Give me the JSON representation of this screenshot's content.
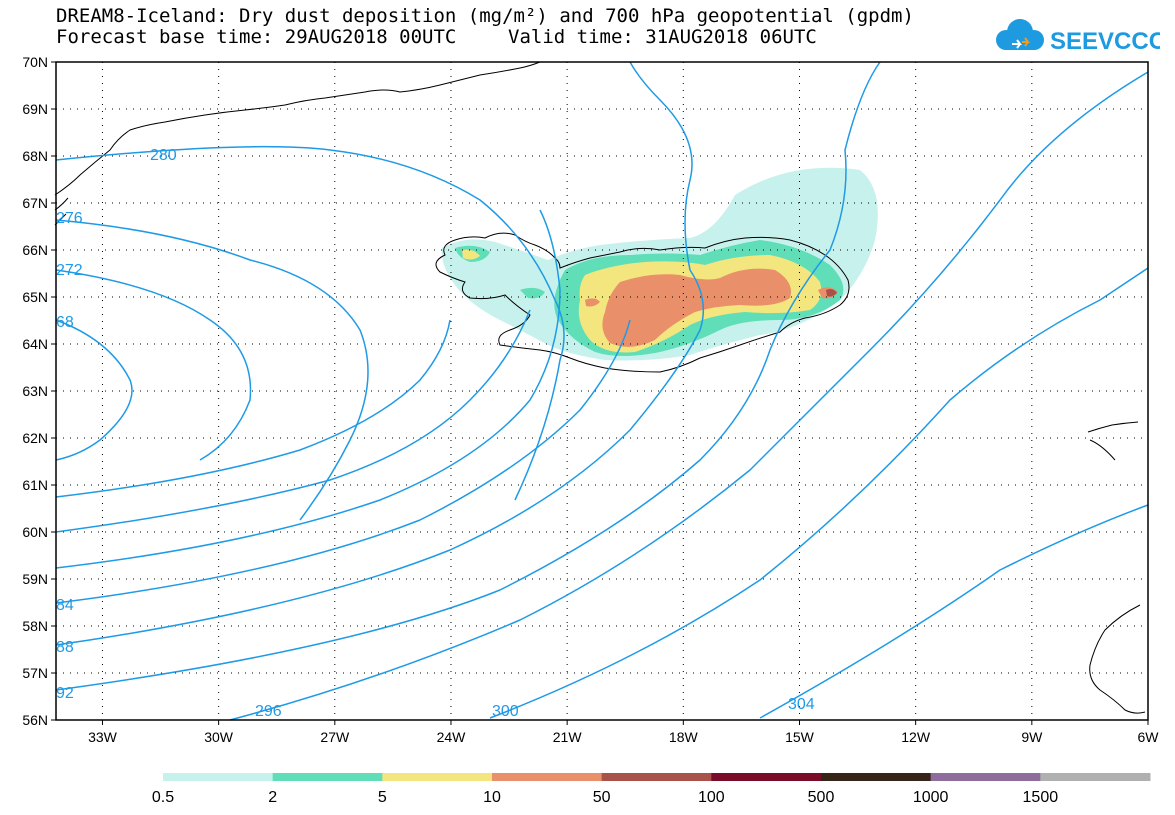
{
  "title": {
    "line1": "DREAM8-Iceland: Dry dust deposition (mg/m²) and 700 hPa geopotential (gpdm)",
    "base_time": "Forecast base time: 29AUG2018 00UTC",
    "valid_time": "Valid time: 31AUG2018 06UTC"
  },
  "logo": {
    "text": "SEEVCCC",
    "icon": "cloud-icon",
    "color": "#1e9be0"
  },
  "map": {
    "lat_labels": [
      "70N",
      "69N",
      "68N",
      "67N",
      "66N",
      "65N",
      "64N",
      "63N",
      "62N",
      "61N",
      "60N",
      "59N",
      "58N",
      "57N",
      "56N"
    ],
    "lon_labels": [
      "33W",
      "30W",
      "27W",
      "24W",
      "21W",
      "18W",
      "15W",
      "12W",
      "9W",
      "6W"
    ],
    "lat_range": [
      56,
      70
    ],
    "lon_range": [
      -34.2,
      -6
    ],
    "grid": "dotted",
    "contour_color": "#1f9ae6",
    "contour_labels": [
      "280",
      "276",
      "272",
      "68",
      "84",
      "88",
      "92",
      "296",
      "300",
      "304"
    ]
  },
  "legend": {
    "levels": [
      "0.5",
      "2",
      "5",
      "10",
      "50",
      "100",
      "500",
      "1000",
      "1500"
    ],
    "colors": [
      "#c6f1ec",
      "#5fdeb8",
      "#f4e67f",
      "#e9906a",
      "#a8524a",
      "#7a0c2a",
      "#352417",
      "#8e6d9c",
      "#b0b0b0"
    ]
  }
}
